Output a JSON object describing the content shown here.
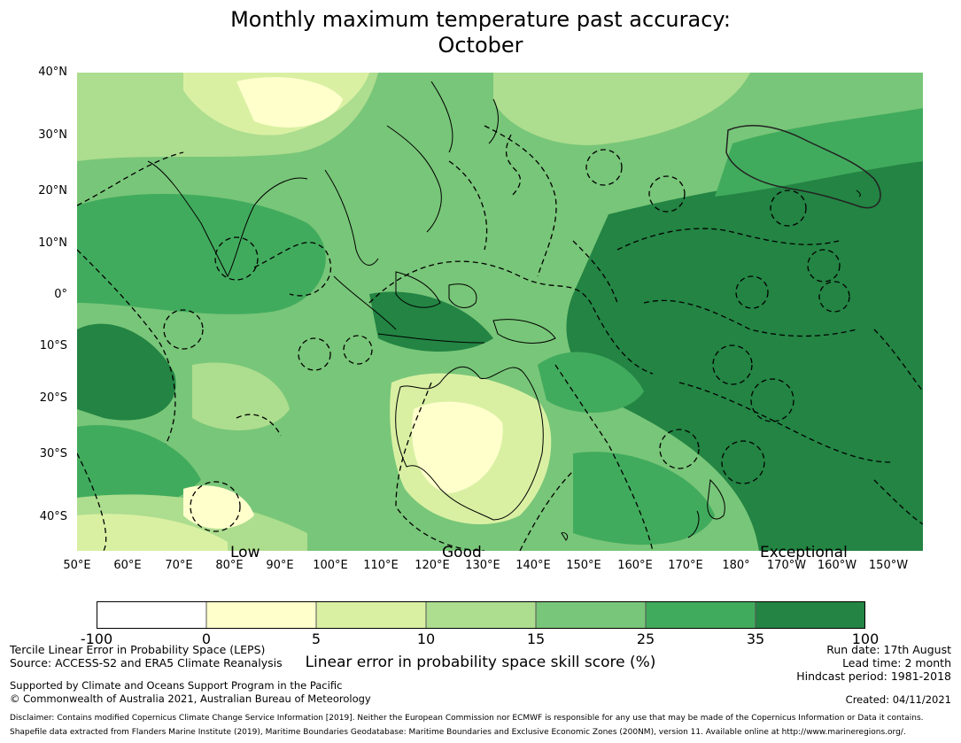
{
  "title_line1": "Monthly maximum temperature past accuracy:",
  "title_line2": "October",
  "lat_labels": [
    "40°N",
    "30°N",
    "20°N",
    "10°N",
    "0°",
    "10°S",
    "20°S",
    "30°S",
    "40°S"
  ],
  "lon_labels": [
    "50°E",
    "60°E",
    "70°E",
    "80°E",
    "90°E",
    "100°E",
    "110°E",
    "120°E",
    "130°E",
    "140°E",
    "150°E",
    "160°E",
    "170°E",
    "180°",
    "170°W",
    "160°W",
    "150°W"
  ],
  "categories": {
    "low": "Low",
    "good": "Good",
    "exceptional": "Exceptional"
  },
  "colorbar": {
    "ticks": [
      "-100",
      "0",
      "5",
      "10",
      "15",
      "25",
      "35",
      "100"
    ],
    "colors": [
      "#ffffff",
      "#ffffcc",
      "#d9f0a3",
      "#addd8e",
      "#78c679",
      "#41ab5d",
      "#238443"
    ],
    "label": "Linear error in probability space skill score (%)"
  },
  "footer": {
    "method": "Tercile Linear Error in Probability Space (LEPS)",
    "source": "Source: ACCESS-S2 and ERA5 Climate Reanalysis",
    "run_date": "Run date: 17th August",
    "lead_time": "Lead time: 2 month",
    "hindcast": "Hindcast period: 1981-2018",
    "support": "Supported by Climate and Oceans Support Program in the Pacific",
    "copyright": "© Commonwealth of Australia 2021, Australian Bureau of Meteorology",
    "created": "Created: 04/11/2021",
    "disclaimer": "Disclaimer: Contains modified Copernicus Climate Change Service Information [2019]. Neither the European Commission nor ECMWF is responsible for any use that may be made of the Copernicus Information or Data it contains.",
    "shapefile": "Shapefile data extracted from Flanders Marine Institute (2019), Maritime Boundaries Geodatabase: Maritime Boundaries and Exclusive Economic Zones (200NM), version 11. Available online at http://www.marineregions.org/."
  }
}
